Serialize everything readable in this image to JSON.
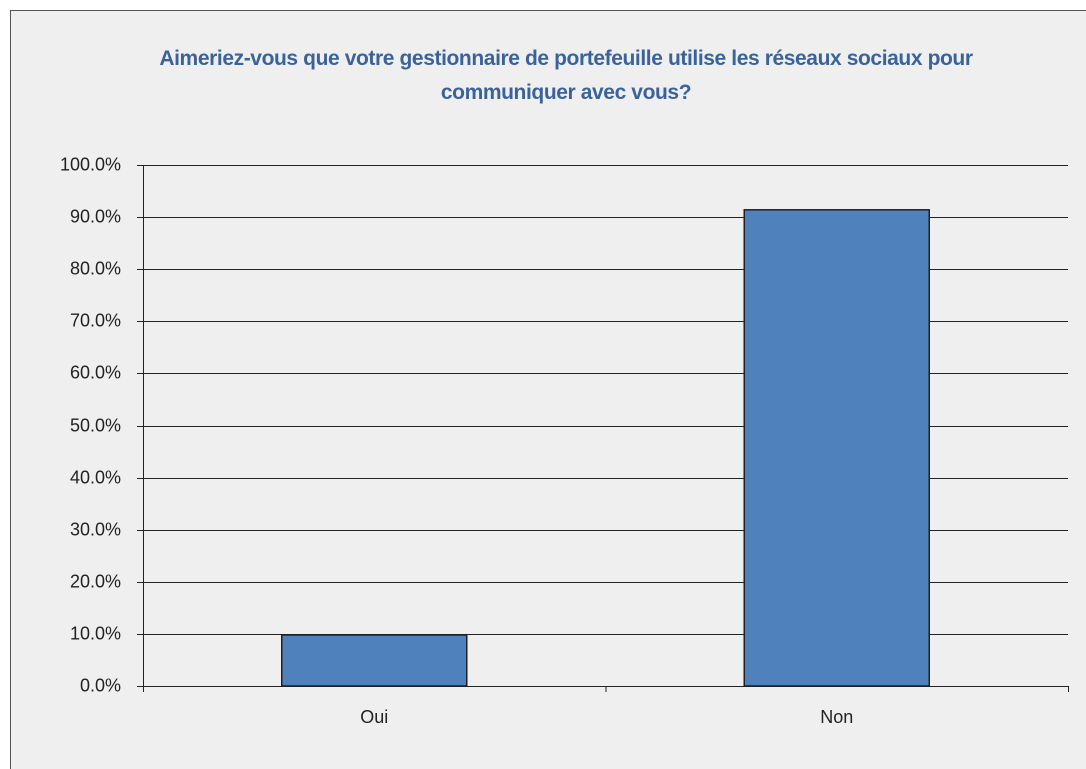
{
  "chart_data": {
    "type": "bar",
    "title": "Aimeriez-vous que votre gestionnaire de portefeuille utilise les réseaux sociaux pour communiquer avec vous?",
    "categories": [
      "Oui",
      "Non"
    ],
    "values": [
      9.8,
      91.4
    ],
    "color": "#4f81bd",
    "ylim": [
      0,
      100
    ],
    "yticks": [
      {
        "value": 0,
        "label": "0.0%"
      },
      {
        "value": 10,
        "label": "10.0%"
      },
      {
        "value": 20,
        "label": "20.0%"
      },
      {
        "value": 30,
        "label": "30.0%"
      },
      {
        "value": 40,
        "label": "40.0%"
      },
      {
        "value": 50,
        "label": "50.0%"
      },
      {
        "value": 60,
        "label": "60.0%"
      },
      {
        "value": 70,
        "label": "70.0%"
      },
      {
        "value": 80,
        "label": "80.0%"
      },
      {
        "value": 90,
        "label": "90.0%"
      },
      {
        "value": 100,
        "label": "100.0%"
      }
    ],
    "grid": true
  }
}
